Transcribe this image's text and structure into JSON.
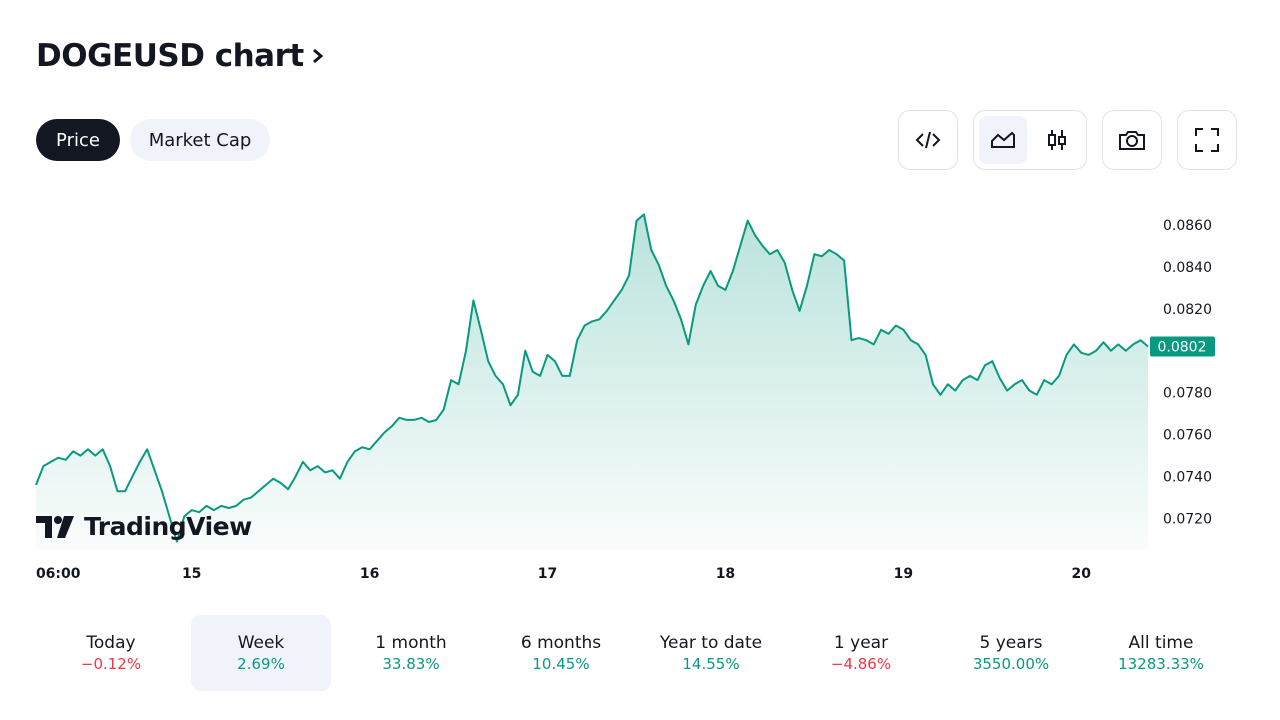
{
  "header": {
    "title": "DOGEUSD chart"
  },
  "tabs": [
    "Price",
    "Market Cap"
  ],
  "watermark": "TradingView",
  "chart_data": {
    "type": "area",
    "color": "#089981",
    "values": [
      0.0736,
      0.0745,
      0.0747,
      0.0749,
      0.0748,
      0.0752,
      0.075,
      0.0753,
      0.075,
      0.0753,
      0.0745,
      0.0733,
      0.0733,
      0.074,
      0.0747,
      0.0753,
      0.0743,
      0.0733,
      0.0721,
      0.0709,
      0.0721,
      0.0724,
      0.0723,
      0.0726,
      0.0724,
      0.0726,
      0.0725,
      0.0726,
      0.0729,
      0.073,
      0.0733,
      0.0736,
      0.0739,
      0.0737,
      0.0734,
      0.074,
      0.0747,
      0.0743,
      0.0745,
      0.0742,
      0.0743,
      0.0739,
      0.0747,
      0.0752,
      0.0754,
      0.0753,
      0.0757,
      0.0761,
      0.0764,
      0.0768,
      0.0767,
      0.0767,
      0.0768,
      0.0766,
      0.0767,
      0.0772,
      0.0786,
      0.0784,
      0.08,
      0.0824,
      0.081,
      0.0795,
      0.0788,
      0.0784,
      0.0774,
      0.0779,
      0.08,
      0.079,
      0.0788,
      0.0798,
      0.0795,
      0.0788,
      0.0788,
      0.0805,
      0.0812,
      0.0814,
      0.0815,
      0.0819,
      0.0824,
      0.0829,
      0.0836,
      0.0862,
      0.0865,
      0.0848,
      0.0841,
      0.0831,
      0.0824,
      0.0815,
      0.0803,
      0.0822,
      0.0831,
      0.0838,
      0.0831,
      0.0829,
      0.0838,
      0.085,
      0.0862,
      0.0855,
      0.085,
      0.0846,
      0.0848,
      0.0842,
      0.0829,
      0.0819,
      0.0831,
      0.0846,
      0.0845,
      0.0848,
      0.0846,
      0.0843,
      0.0805,
      0.0806,
      0.0805,
      0.0803,
      0.081,
      0.0808,
      0.0812,
      0.081,
      0.0805,
      0.0803,
      0.0798,
      0.0784,
      0.0779,
      0.0784,
      0.0781,
      0.0786,
      0.0788,
      0.0786,
      0.0793,
      0.0795,
      0.0787,
      0.0781,
      0.0784,
      0.0786,
      0.0781,
      0.0779,
      0.0786,
      0.0784,
      0.0788,
      0.0798,
      0.0803,
      0.0799,
      0.0798,
      0.08,
      0.0804,
      0.08,
      0.0803,
      0.08,
      0.0803,
      0.0805,
      0.0802
    ],
    "xlim": [
      0,
      150
    ],
    "xticks": [
      {
        "value": 3,
        "label": "06:00"
      },
      {
        "value": 21,
        "label": "15"
      },
      {
        "value": 45,
        "label": "16"
      },
      {
        "value": 69,
        "label": "17"
      },
      {
        "value": 93,
        "label": "18"
      },
      {
        "value": 117,
        "label": "19"
      },
      {
        "value": 141,
        "label": "20"
      }
    ],
    "ylim": [
      0.0705,
      0.0879
    ],
    "yticks": [
      {
        "value": 0.072,
        "label": "0.0720"
      },
      {
        "value": 0.074,
        "label": "0.0740"
      },
      {
        "value": 0.076,
        "label": "0.0760"
      },
      {
        "value": 0.078,
        "label": "0.0780"
      },
      {
        "value": 0.08,
        "label": "0.0800"
      },
      {
        "value": 0.082,
        "label": "0.0820"
      },
      {
        "value": 0.084,
        "label": "0.0840"
      },
      {
        "value": 0.086,
        "label": "0.0860"
      }
    ],
    "grid": false
  },
  "periods": [
    {
      "label": "Today",
      "change": "−0.12%",
      "color": "#f23645"
    },
    {
      "label": "Week",
      "change": "2.69%",
      "color": "#089981"
    },
    {
      "label": "1 month",
      "change": "33.83%",
      "color": "#089981"
    },
    {
      "label": "6 months",
      "change": "10.45%",
      "color": "#089981"
    },
    {
      "label": "Year to date",
      "change": "14.55%",
      "color": "#089981"
    },
    {
      "label": "1 year",
      "change": "−4.86%",
      "color": "#f23645"
    },
    {
      "label": "5 years",
      "change": "3550.00%",
      "color": "#089981"
    },
    {
      "label": "All time",
      "change": "13283.33%",
      "color": "#089981"
    }
  ]
}
